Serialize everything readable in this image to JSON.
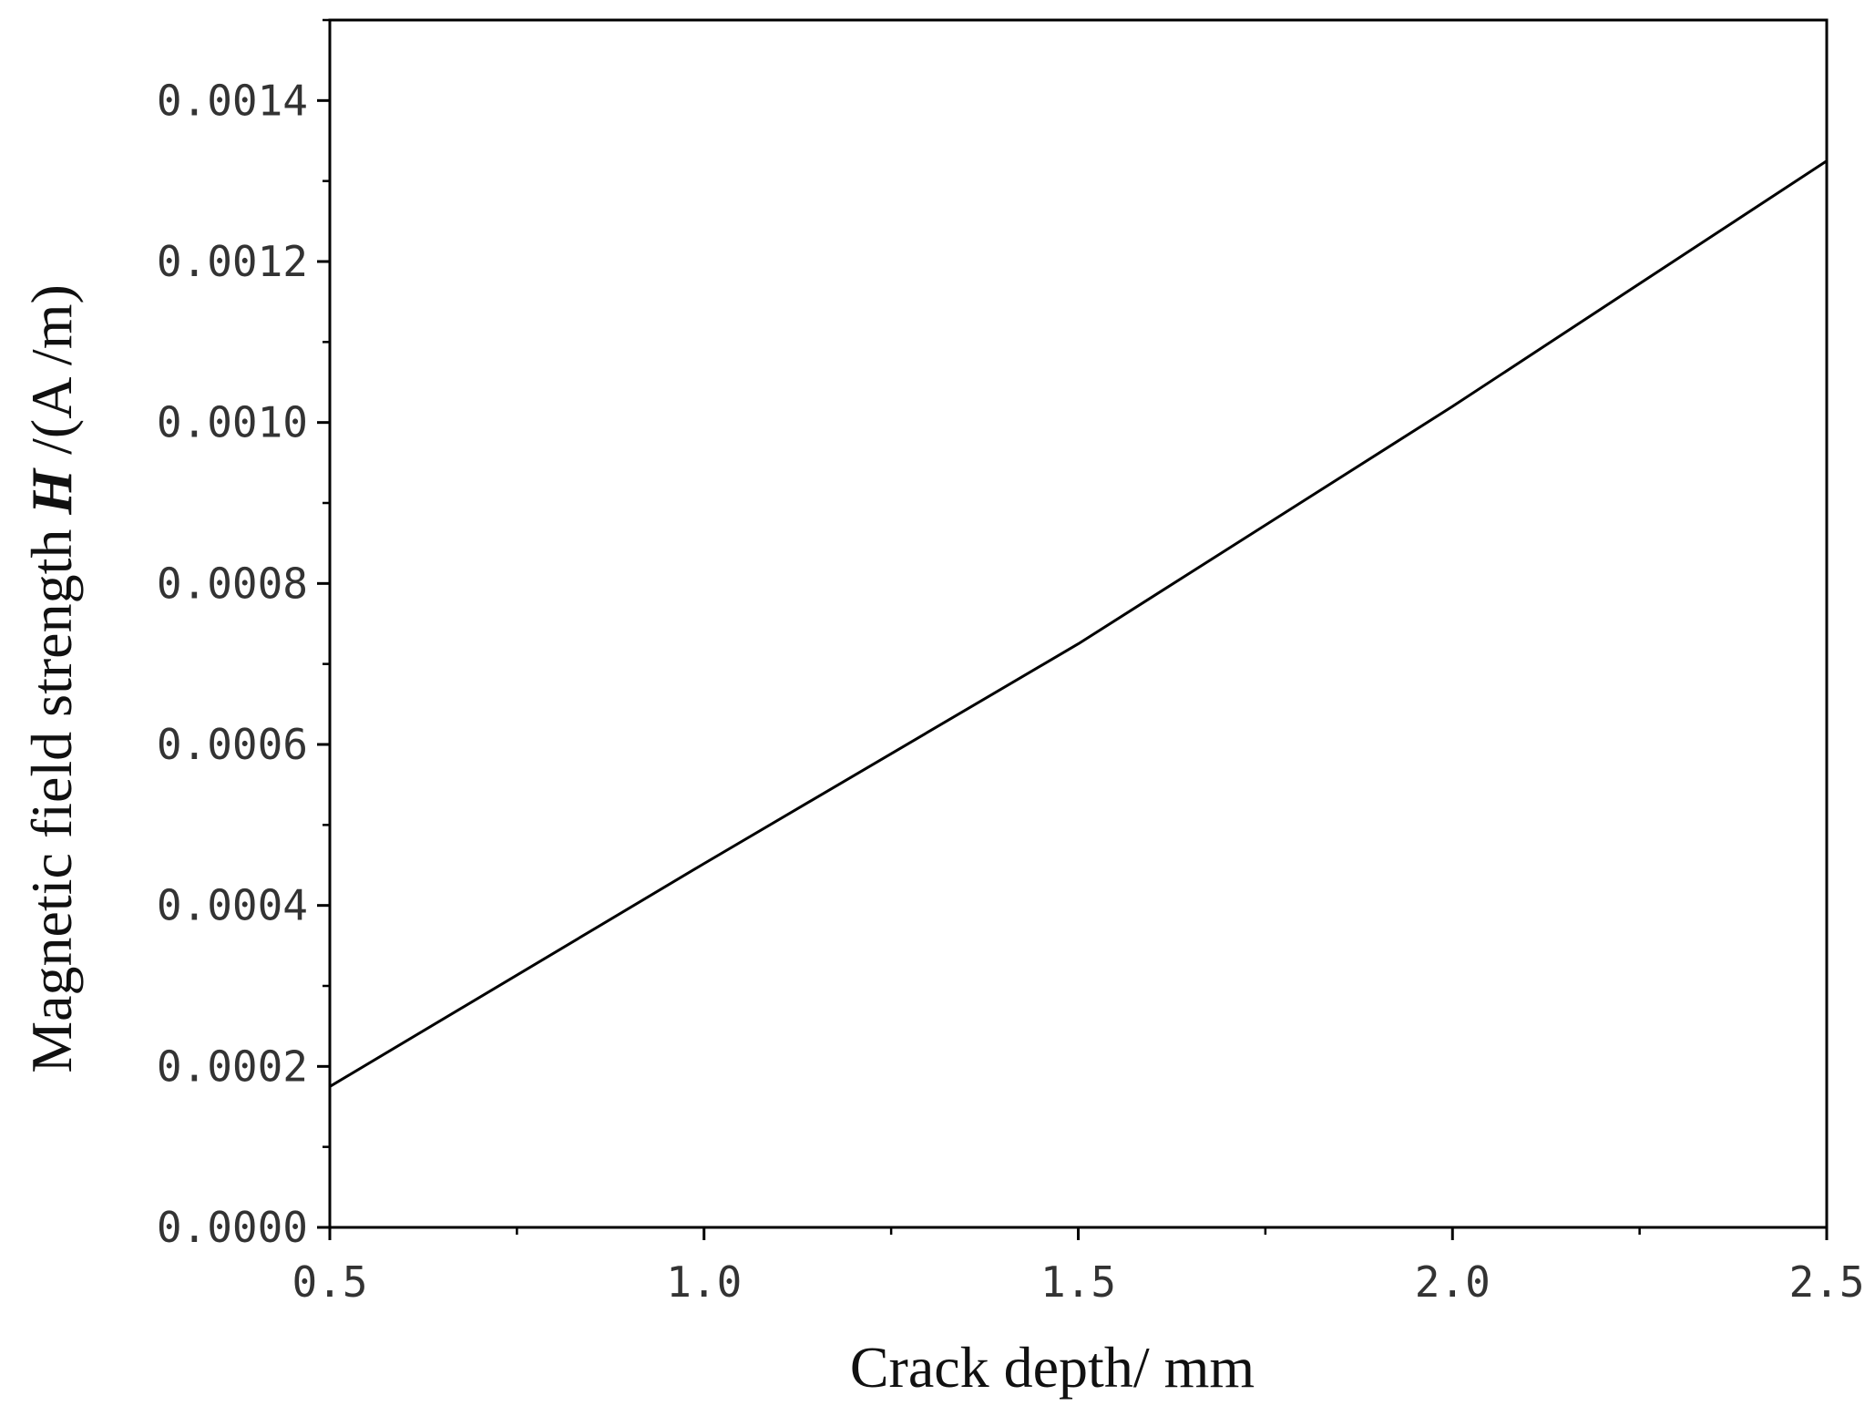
{
  "chart_data": {
    "type": "line",
    "title": "",
    "xlabel": "Crack depth/ mm",
    "ylabel": {
      "prefix": "Magnetic field strength ",
      "symbol": "H",
      "suffix": " /(A /m)"
    },
    "xlim": [
      0.5,
      2.5
    ],
    "ylim": [
      0.0,
      0.0015
    ],
    "x_ticks": [
      "0.5",
      "1.0",
      "1.5",
      "2.0",
      "2.5"
    ],
    "y_ticks": [
      "0.0000",
      "0.0002",
      "0.0004",
      "0.0006",
      "0.0008",
      "0.0010",
      "0.0012",
      "0.0014"
    ],
    "grid": false,
    "legend": "none",
    "line_color": "#000000",
    "series": [
      {
        "x": [
          0.5,
          1.0,
          1.5,
          2.0,
          2.5
        ],
        "values": [
          0.000175,
          0.000452,
          0.000725,
          0.00102,
          0.001325
        ]
      }
    ]
  }
}
